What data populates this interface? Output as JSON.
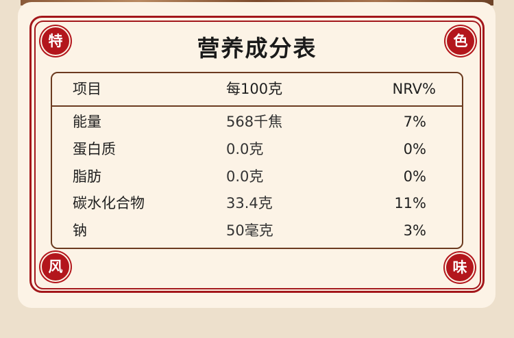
{
  "title": "营养成分表",
  "badges": {
    "top_left": "特",
    "top_right": "色",
    "bottom_left": "风",
    "bottom_right": "味"
  },
  "colors": {
    "accent_red": "#b3161c",
    "border_brown": "#6b3a1f",
    "card_bg": "#fcf3e6",
    "page_bg": "#ede0cc"
  },
  "table": {
    "headers": [
      "项目",
      "每100克",
      "NRV%"
    ],
    "rows": [
      [
        "能量",
        "568千焦",
        "7%"
      ],
      [
        "蛋白质",
        "0.0克",
        "0%"
      ],
      [
        "脂肪",
        "0.0克",
        "0%"
      ],
      [
        "碳水化合物",
        "33.4克",
        "11%"
      ],
      [
        "钠",
        "50毫克",
        "3%"
      ]
    ]
  }
}
